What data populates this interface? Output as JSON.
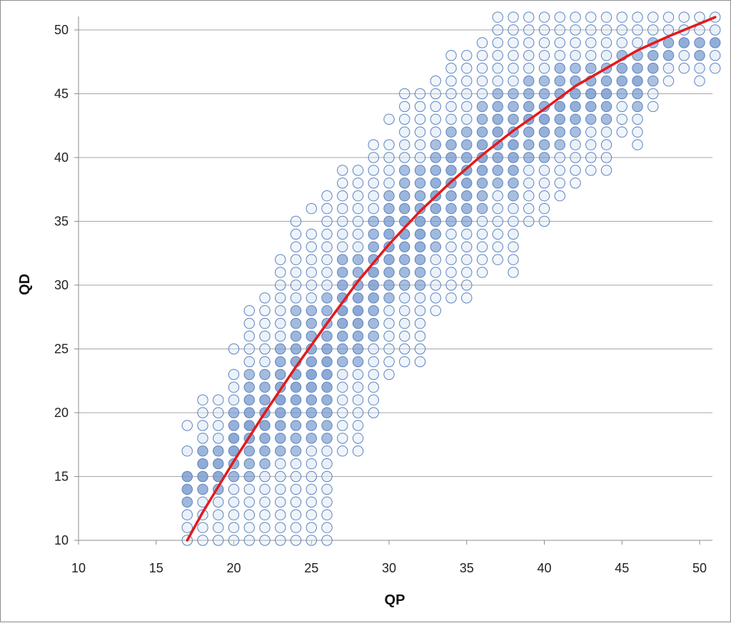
{
  "chart_data": {
    "type": "scatter",
    "xlabel": "QP",
    "ylabel": "QD",
    "xlim": [
      10,
      51
    ],
    "ylim": [
      10,
      51
    ],
    "x_ticks": [
      "10",
      "15",
      "20",
      "25",
      "30",
      "35",
      "40",
      "45",
      "50"
    ],
    "y_ticks": [
      "10",
      "15",
      "20",
      "25",
      "30",
      "35",
      "40",
      "45",
      "50"
    ],
    "grid": "horizontal",
    "legend": "none",
    "colors": {
      "point_fill_light": "#dbe6f4",
      "point_fill_dark": "#7b9ccf",
      "point_stroke": "#5a82be",
      "fit_line": "#e31a1c",
      "grid": "#a6a6a6",
      "axis": "#8c8c8c"
    },
    "point_columns": [
      {
        "qp": 17,
        "qd_min": 10,
        "qd_max": 19,
        "missing": [
          16,
          18
        ]
      },
      {
        "qp": 18,
        "qd_min": 10,
        "qd_max": 21,
        "missing": []
      },
      {
        "qp": 19,
        "qd_min": 10,
        "qd_max": 21,
        "missing": []
      },
      {
        "qp": 20,
        "qd_min": 10,
        "qd_max": 25,
        "missing": [
          24
        ]
      },
      {
        "qp": 21,
        "qd_min": 10,
        "qd_max": 28,
        "missing": []
      },
      {
        "qp": 22,
        "qd_min": 10,
        "qd_max": 29,
        "missing": []
      },
      {
        "qp": 23,
        "qd_min": 10,
        "qd_max": 32,
        "missing": []
      },
      {
        "qp": 24,
        "qd_min": 10,
        "qd_max": 35,
        "missing": []
      },
      {
        "qp": 25,
        "qd_min": 10,
        "qd_max": 36,
        "missing": [
          35
        ]
      },
      {
        "qp": 26,
        "qd_min": 10,
        "qd_max": 37,
        "missing": []
      },
      {
        "qp": 27,
        "qd_min": 17,
        "qd_max": 39,
        "missing": []
      },
      {
        "qp": 28,
        "qd_min": 17,
        "qd_max": 39,
        "missing": []
      },
      {
        "qp": 29,
        "qd_min": 20,
        "qd_max": 41,
        "missing": []
      },
      {
        "qp": 30,
        "qd_min": 23,
        "qd_max": 43,
        "missing": [
          42
        ]
      },
      {
        "qp": 31,
        "qd_min": 24,
        "qd_max": 45,
        "missing": []
      },
      {
        "qp": 32,
        "qd_min": 24,
        "qd_max": 45,
        "missing": []
      },
      {
        "qp": 33,
        "qd_min": 28,
        "qd_max": 46,
        "missing": []
      },
      {
        "qp": 34,
        "qd_min": 29,
        "qd_max": 48,
        "missing": []
      },
      {
        "qp": 35,
        "qd_min": 29,
        "qd_max": 48,
        "missing": []
      },
      {
        "qp": 36,
        "qd_min": 31,
        "qd_max": 49,
        "missing": []
      },
      {
        "qp": 37,
        "qd_min": 32,
        "qd_max": 51,
        "missing": []
      },
      {
        "qp": 38,
        "qd_min": 31,
        "qd_max": 51,
        "missing": []
      },
      {
        "qp": 39,
        "qd_min": 35,
        "qd_max": 51,
        "missing": []
      },
      {
        "qp": 40,
        "qd_min": 35,
        "qd_max": 51,
        "missing": []
      },
      {
        "qp": 41,
        "qd_min": 37,
        "qd_max": 51,
        "missing": []
      },
      {
        "qp": 42,
        "qd_min": 38,
        "qd_max": 51,
        "missing": []
      },
      {
        "qp": 43,
        "qd_min": 39,
        "qd_max": 51,
        "missing": []
      },
      {
        "qp": 44,
        "qd_min": 39,
        "qd_max": 51,
        "missing": []
      },
      {
        "qp": 45,
        "qd_min": 42,
        "qd_max": 51,
        "missing": []
      },
      {
        "qp": 46,
        "qd_min": 41,
        "qd_max": 51,
        "missing": []
      },
      {
        "qp": 47,
        "qd_min": 44,
        "qd_max": 51,
        "missing": []
      },
      {
        "qp": 48,
        "qd_min": 46,
        "qd_max": 51,
        "missing": []
      },
      {
        "qp": 49,
        "qd_min": 47,
        "qd_max": 51,
        "missing": []
      },
      {
        "qp": 50,
        "qd_min": 46,
        "qd_max": 51,
        "missing": []
      },
      {
        "qp": 51,
        "qd_min": 47,
        "qd_max": 51,
        "missing": []
      }
    ],
    "fit_curve": {
      "name": "",
      "x": [
        17,
        18,
        20,
        22,
        24,
        26,
        28,
        30,
        32,
        34,
        36,
        38,
        40,
        42,
        44,
        46,
        48,
        50,
        51
      ],
      "y": [
        10,
        12.2,
        16.2,
        20.0,
        23.6,
        27.0,
        30.3,
        33.2,
        35.8,
        38.1,
        40.2,
        42.1,
        43.8,
        45.6,
        47.0,
        48.4,
        49.5,
        50.5,
        51
      ]
    }
  }
}
